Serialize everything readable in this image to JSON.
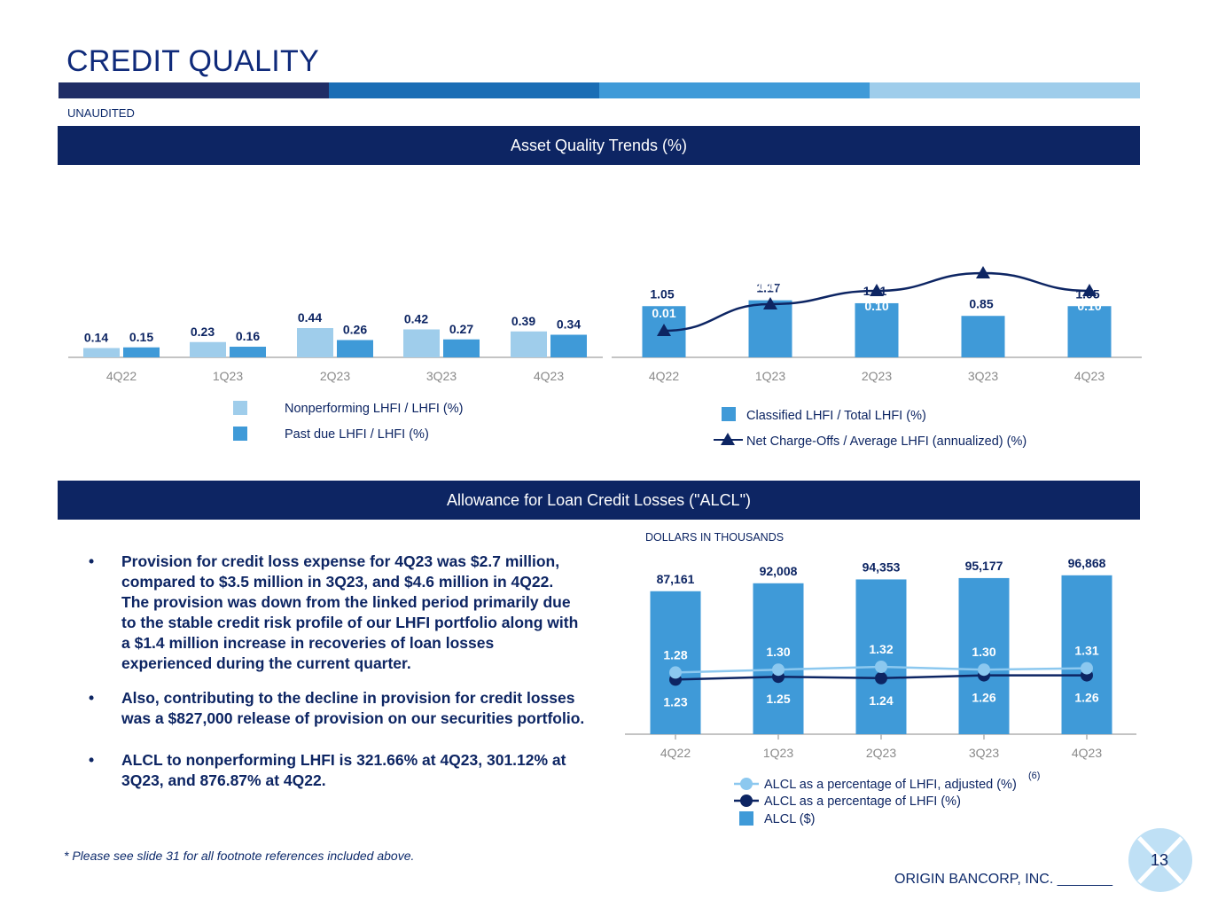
{
  "page": {
    "title": "CREDIT QUALITY",
    "subtitle": "UNAUDITED",
    "header_bar_colors": [
      "#1f2d66",
      "#1a6db5",
      "#3f9ad8",
      "#9fcdeb"
    ],
    "section1_title": "Asset Quality Trends (%)",
    "section2_title": "Allowance for Loan Credit Losses (\"ALCL\")",
    "bullets": [
      "Provision for credit loss expense for 4Q23 was $2.7 million, compared to $3.5 million in 3Q23, and $4.6 million in 4Q22. The provision was down from the linked period primarily due to the stable credit risk profile of our LHFI portfolio along with a $1.4 million increase in recoveries of loan losses experienced during the current quarter.",
      "Also, contributing to the decline in provision for credit losses was a $827,000 release of provision on our securities portfolio.",
      "ALCL to nonperforming LHFI is 321.66% at 4Q23, 301.12% at 3Q23, and 876.87% at 4Q22."
    ],
    "bullet_symbol": "•",
    "footnote": "* Please see slide 31 for all footnote references included above.",
    "company": "ORIGIN BANCORP, INC. _______",
    "page_number": "13"
  },
  "chart_data": [
    {
      "type": "bar",
      "categories": [
        "4Q22",
        "1Q23",
        "2Q23",
        "3Q23",
        "4Q23"
      ],
      "series": [
        {
          "name": "Nonperforming LHFI / LHFI (%)",
          "values": [
            0.14,
            0.23,
            0.44,
            0.42,
            0.39
          ],
          "color": "#9fcdeb"
        },
        {
          "name": "Past due LHFI / LHFI (%)",
          "values": [
            0.15,
            0.16,
            0.26,
            0.27,
            0.34
          ],
          "color": "#3f9ad8"
        }
      ],
      "ylim": [
        0,
        1.2
      ],
      "legend": "bottom"
    },
    {
      "type": "bar",
      "categories": [
        "4Q22",
        "1Q23",
        "2Q23",
        "3Q23",
        "4Q23"
      ],
      "series": [
        {
          "name": "Classified LHFI / Total LHFI (%)",
          "values": [
            1.05,
            1.17,
            1.11,
            0.85,
            1.05
          ],
          "color": "#3f9ad8",
          "kind": "bar"
        },
        {
          "name": "Net Charge-Offs / Average LHFI (annualized) (%)",
          "values": [
            0.01,
            0.07,
            0.1,
            0.14,
            0.1
          ],
          "color": "#0d2563",
          "kind": "line"
        }
      ],
      "ylim": [
        0,
        1.2
      ],
      "line_ylim": [
        -0.05,
        0.15
      ],
      "legend": "bottom"
    },
    {
      "type": "bar",
      "unit_label": "DOLLARS IN THOUSANDS",
      "categories": [
        "4Q22",
        "1Q23",
        "2Q23",
        "3Q23",
        "4Q23"
      ],
      "bar_labels": [
        "87,161",
        "92,008",
        "94,353",
        "95,177",
        "96,868"
      ],
      "series": [
        {
          "name": "ALCL ($)",
          "values": [
            87161,
            92008,
            94353,
            95177,
            96868
          ],
          "color": "#3f9ad8",
          "kind": "bar"
        },
        {
          "name": "ALCL as a percentage of LHFI, adjusted (%)",
          "footnote": "(6)",
          "values": [
            1.28,
            1.3,
            1.32,
            1.3,
            1.31
          ],
          "color": "#8cc8ef",
          "kind": "line"
        },
        {
          "name": "ALCL as a percentage of LHFI (%)",
          "values": [
            1.23,
            1.25,
            1.24,
            1.26,
            1.26
          ],
          "color": "#0d2563",
          "kind": "line"
        }
      ],
      "ylim": [
        0,
        100000
      ],
      "legend": "bottom"
    }
  ]
}
